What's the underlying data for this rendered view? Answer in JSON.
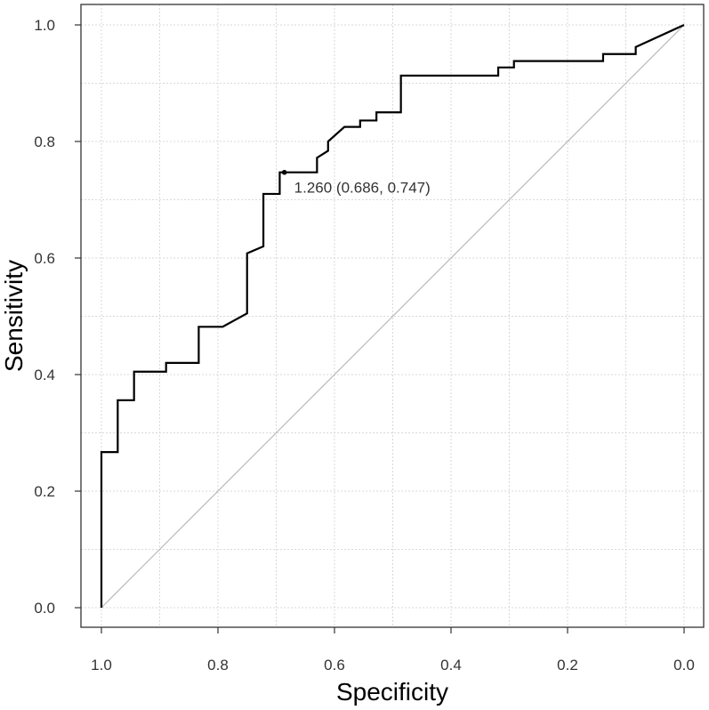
{
  "chart_data": {
    "type": "line",
    "title": "",
    "xlabel": "Specificity",
    "ylabel": "Sensitivity",
    "xlim": [
      1.0,
      0.0
    ],
    "ylim": [
      0.0,
      1.0
    ],
    "x_reversed": true,
    "grid": true,
    "x_ticks": [
      1.0,
      0.8,
      0.6,
      0.4,
      0.2,
      0.0
    ],
    "x_tick_labels": [
      "1.0",
      "0.8",
      "0.6",
      "0.4",
      "0.2",
      "0.0"
    ],
    "y_ticks": [
      0.0,
      0.2,
      0.4,
      0.6,
      0.8,
      1.0
    ],
    "y_tick_labels": [
      "0.0",
      "0.2",
      "0.4",
      "0.6",
      "0.8",
      "1.0"
    ],
    "series": [
      {
        "name": "ROC curve",
        "x": [
          1.0,
          1.0,
          0.972,
          0.972,
          0.944,
          0.944,
          0.889,
          0.889,
          0.833,
          0.833,
          0.792,
          0.75,
          0.75,
          0.722,
          0.722,
          0.694,
          0.694,
          0.686,
          0.686,
          0.63,
          0.63,
          0.611,
          0.611,
          0.583,
          0.556,
          0.556,
          0.528,
          0.528,
          0.5,
          0.5,
          0.486,
          0.486,
          0.319,
          0.319,
          0.292,
          0.292,
          0.139,
          0.139,
          0.083,
          0.083,
          0.0
        ],
        "y": [
          0.0,
          0.267,
          0.267,
          0.356,
          0.356,
          0.405,
          0.405,
          0.42,
          0.42,
          0.482,
          0.482,
          0.505,
          0.608,
          0.62,
          0.71,
          0.71,
          0.747,
          0.747,
          0.747,
          0.747,
          0.772,
          0.784,
          0.8,
          0.825,
          0.825,
          0.836,
          0.836,
          0.85,
          0.85,
          0.85,
          0.85,
          0.913,
          0.913,
          0.927,
          0.927,
          0.938,
          0.938,
          0.95,
          0.95,
          0.962,
          1.0
        ]
      },
      {
        "name": "Reference line",
        "x": [
          1.0,
          0.0
        ],
        "y": [
          0.0,
          1.0
        ]
      }
    ],
    "best_threshold": {
      "threshold": 1.26,
      "specificity": 0.686,
      "sensitivity": 0.747,
      "label": "1.260 (0.686, 0.747)"
    },
    "colors": {
      "curve": "#000000",
      "reference": "#bbbbbb",
      "grid": "#d9d9d9",
      "axis": "#333333"
    }
  }
}
